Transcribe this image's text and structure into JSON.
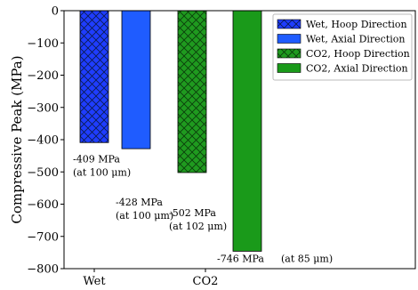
{
  "chart_data": {
    "type": "bar",
    "title": "",
    "xlabel": "",
    "ylabel": "Compressive Peak (MPa)",
    "ylim": [
      -800,
      0
    ],
    "yticks": [
      0,
      -100,
      -200,
      -300,
      -400,
      -500,
      -600,
      -700,
      -800
    ],
    "ytick_labels": [
      "0",
      "−100",
      "−200",
      "−300",
      "−400",
      "−500",
      "−600",
      "−700",
      "−800"
    ],
    "categories": [
      "Wet",
      "CO2"
    ],
    "grid": false,
    "legend_position": "top-right",
    "bars": [
      {
        "name": "Wet, Hoop Direction",
        "group": "Wet",
        "value": -409,
        "color": "#1f3dff",
        "hatch": "cross",
        "label": "-409 MPa",
        "label2": "(at 100 μm)"
      },
      {
        "name": "Wet, Axial Direction",
        "group": "Wet",
        "value": -428,
        "color": "#1f5cff",
        "hatch": "none",
        "label": "-428 MPa",
        "label2": "(at 100 μm)"
      },
      {
        "name": "CO2, Hoop Direction",
        "group": "CO2",
        "value": -502,
        "color": "#1f9a1f",
        "hatch": "cross",
        "label": "-502 MPa",
        "label2": "(at 102 μm)"
      },
      {
        "name": "CO2, Axial Direction",
        "group": "CO2",
        "value": -746,
        "color": "#1a9a1a",
        "hatch": "none",
        "label": "-746 MPa",
        "label2": "(at 85 μm)"
      }
    ]
  }
}
